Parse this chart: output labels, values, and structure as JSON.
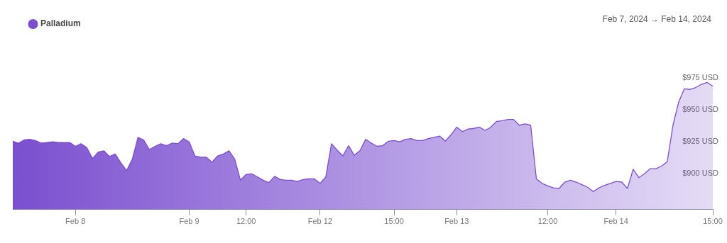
{
  "chart_data": {
    "type": "area",
    "subtitle": "Feb 7, 2024 → Feb 14, 2024",
    "legend": "top left",
    "grid": false,
    "marker": "none",
    "categories": [
      null,
      null,
      null,
      null,
      null,
      null,
      null,
      null,
      null,
      null,
      null,
      "Feb 8",
      null,
      null,
      null,
      null,
      null,
      null,
      null,
      null,
      null,
      null,
      null,
      null,
      null,
      null,
      null,
      null,
      null,
      null,
      null,
      "Feb 9",
      null,
      null,
      null,
      null,
      null,
      null,
      null,
      null,
      null,
      "12:00",
      null,
      null,
      null,
      null,
      null,
      null,
      null,
      null,
      null,
      null,
      null,
      null,
      "Feb 12",
      null,
      null,
      null,
      null,
      null,
      null,
      null,
      null,
      null,
      null,
      null,
      null,
      "15:00",
      null,
      null,
      null,
      null,
      null,
      null,
      null,
      null,
      null,
      null,
      "Feb 13",
      null,
      null,
      null,
      null,
      null,
      null,
      null,
      null,
      null,
      null,
      null,
      null,
      null,
      null,
      null,
      "12:00",
      null,
      null,
      null,
      null,
      null,
      null,
      null,
      null,
      null,
      null,
      null,
      "Feb 14",
      null,
      null,
      null,
      null,
      null,
      null,
      null,
      null,
      null,
      null,
      null,
      null,
      null,
      null,
      null,
      null,
      "15:00"
    ],
    "series": [
      {
        "name": "Palladium",
        "color": "#7b4fd0",
        "values": [
          925.5,
          924,
          926.5,
          927,
          926,
          924,
          924.5,
          925,
          924.5,
          924.5,
          924.5,
          921.5,
          923.5,
          920.5,
          912,
          917,
          918,
          913.5,
          915.5,
          908.5,
          902.5,
          911.5,
          928.5,
          926.5,
          919,
          921.5,
          923.5,
          922,
          924,
          923.5,
          927.5,
          925,
          914,
          913,
          913,
          909,
          914,
          915.5,
          918,
          911.5,
          895,
          899.5,
          900,
          897.5,
          895,
          893,
          898,
          895.5,
          895,
          895,
          894,
          895.5,
          896,
          896,
          892.5,
          897.5,
          923.5,
          918.5,
          914,
          922,
          914.5,
          918,
          927,
          924,
          921.5,
          922,
          925.5,
          926,
          925,
          927,
          927.5,
          926,
          926,
          927.5,
          928.5,
          929.5,
          925.5,
          930.5,
          936.5,
          933,
          935,
          935.5,
          936.5,
          934,
          936.5,
          941,
          941.5,
          942.5,
          942.5,
          938,
          939,
          938,
          896,
          892.5,
          890.5,
          889,
          888.5,
          893.5,
          895,
          893.5,
          891.5,
          889.5,
          886,
          889,
          891,
          892.5,
          894,
          893.5,
          888.5,
          903.5,
          897,
          900,
          904,
          904,
          906,
          909.5,
          938,
          956,
          966.5,
          966,
          967.5,
          970,
          971.5,
          968.5
        ]
      }
    ],
    "ylim": [
      872,
      975
    ],
    "yticks": [
      {
        "value": 900,
        "label": "$900 USD"
      },
      {
        "value": 925,
        "label": "$925 USD"
      },
      {
        "value": 950,
        "label": "$950 USD"
      },
      {
        "value": 975,
        "label": "$975 USD"
      }
    ]
  }
}
